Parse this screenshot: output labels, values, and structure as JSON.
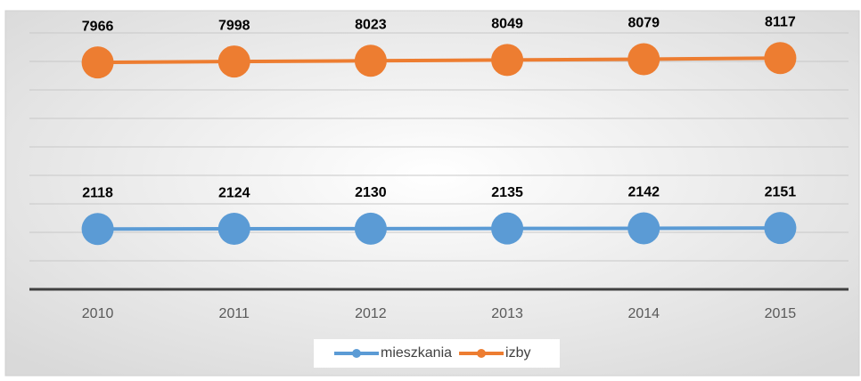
{
  "chart_data": {
    "type": "line",
    "categories": [
      "2010",
      "2011",
      "2012",
      "2013",
      "2014",
      "2015"
    ],
    "series": [
      {
        "name": "mieszkania",
        "color": "#5b9bd5",
        "values": [
          2118,
          2124,
          2130,
          2135,
          2142,
          2151
        ]
      },
      {
        "name": "izby",
        "color": "#ed7d31",
        "values": [
          7966,
          7998,
          8023,
          8049,
          8079,
          8117
        ]
      }
    ],
    "ylim": [
      0,
      9000
    ],
    "yticks": [
      0,
      1000,
      2000,
      3000,
      4000,
      5000,
      6000,
      7000,
      8000,
      9000
    ],
    "grid": true,
    "legend": "bottom"
  }
}
